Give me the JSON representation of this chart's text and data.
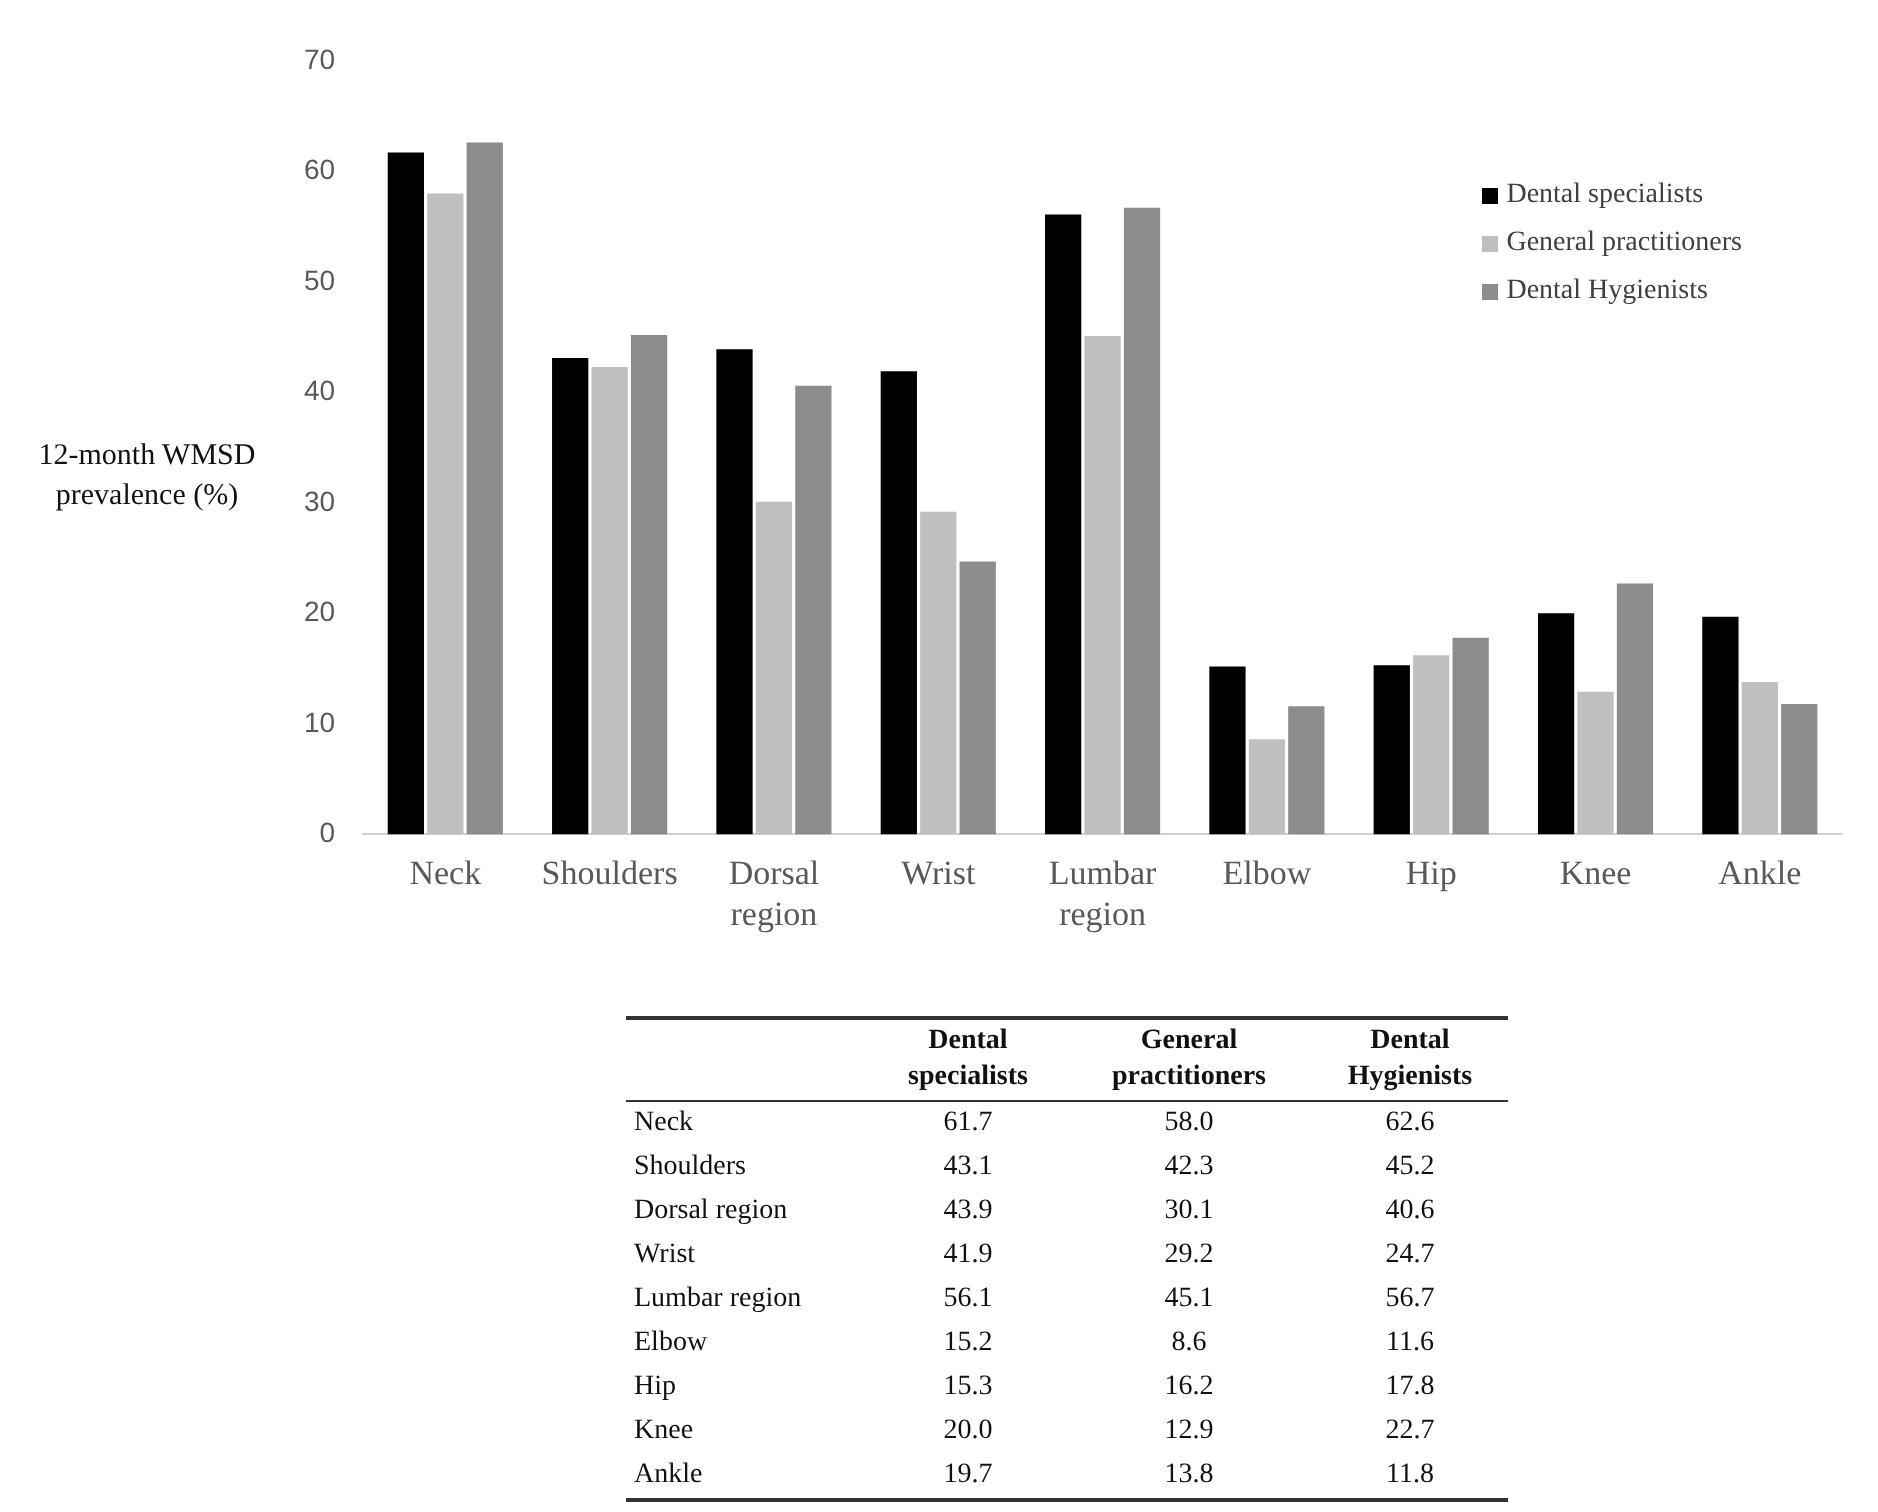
{
  "chart_data": [
    {
      "type": "bar",
      "ylabel": "12-month WMSD prevalence (%)",
      "categories": [
        "Neck",
        "Shoulders",
        "Dorsal region",
        "Wrist",
        "Lumbar region",
        "Elbow",
        "Hip",
        "Knee",
        "Ankle"
      ],
      "series": [
        {
          "name": "Dental specialists",
          "color": "#000000",
          "values": [
            61.7,
            43.1,
            43.9,
            41.9,
            56.1,
            15.2,
            15.3,
            20.0,
            19.7
          ]
        },
        {
          "name": "General practitioners",
          "color": "#bfbfbf",
          "values": [
            58.0,
            42.3,
            30.1,
            29.2,
            45.1,
            8.6,
            16.2,
            12.9,
            13.8
          ]
        },
        {
          "name": "Dental Hygienists",
          "color": "#8c8c8c",
          "values": [
            62.6,
            45.2,
            40.6,
            24.7,
            56.7,
            11.6,
            17.8,
            22.7,
            11.8
          ]
        }
      ],
      "ylim": [
        0,
        70
      ],
      "yticks": [
        0,
        10,
        20,
        30,
        40,
        50,
        60,
        70
      ],
      "grid": false,
      "legend": "top right"
    },
    {
      "type": "heatmap",
      "categories": [
        "Dental specialists",
        "General practitioners",
        "Dental Hygienists"
      ],
      "y_categories": [
        "Neck",
        "Shoulders",
        "Dorsal region",
        "Wrist",
        "Lumbar region",
        "Elbow",
        "Hip",
        "Knee",
        "Ankle"
      ],
      "cells": [
        [
          61.7,
          58.0,
          62.6
        ],
        [
          43.1,
          42.3,
          45.2
        ],
        [
          43.9,
          30.1,
          40.6
        ],
        [
          41.9,
          29.2,
          24.7
        ],
        [
          56.1,
          45.1,
          56.7
        ],
        [
          15.2,
          8.6,
          11.6
        ],
        [
          15.3,
          16.2,
          17.8
        ],
        [
          20.0,
          12.9,
          22.7
        ],
        [
          19.7,
          13.8,
          11.8
        ]
      ],
      "cell_labels": [
        [
          "61.7",
          "58.0",
          "62.6"
        ],
        [
          "43.1",
          "42.3",
          "45.2"
        ],
        [
          "43.9",
          "30.1",
          "40.6"
        ],
        [
          "41.9",
          "29.2",
          "24.7"
        ],
        [
          "56.1",
          "45.1",
          "56.7"
        ],
        [
          "15.2",
          "8.6",
          "11.6"
        ],
        [
          "15.3",
          "16.2",
          "17.8"
        ],
        [
          "20.0",
          "12.9",
          "22.7"
        ],
        [
          "19.7",
          "13.8",
          "11.8"
        ]
      ]
    }
  ]
}
